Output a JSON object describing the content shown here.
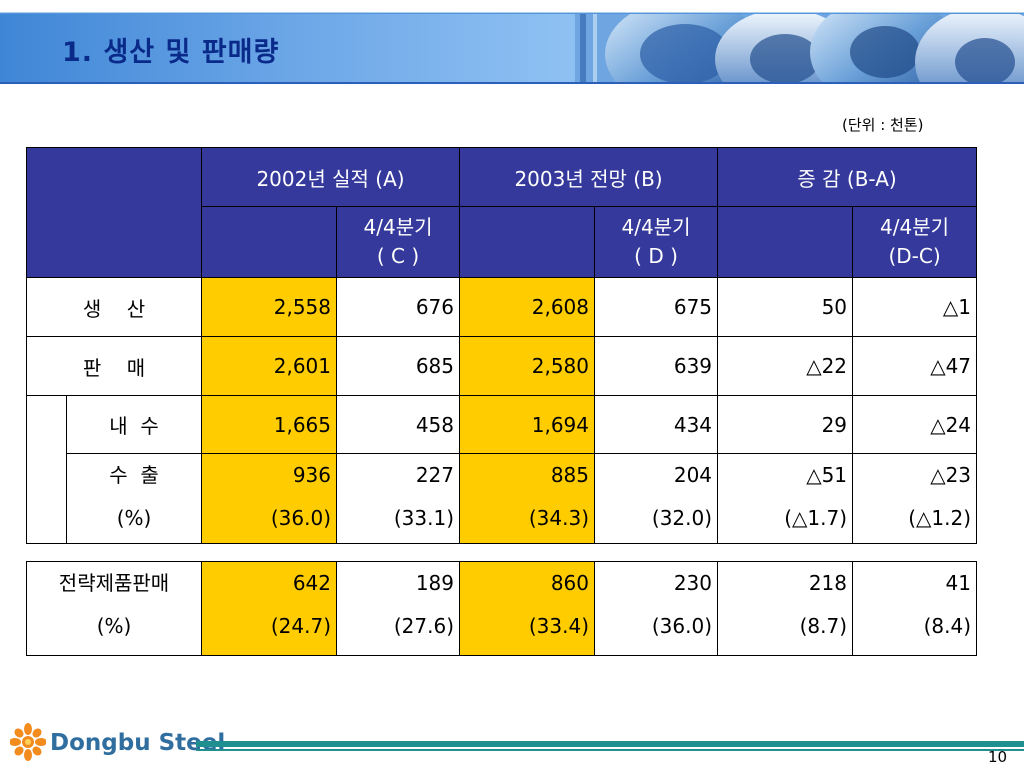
{
  "header": {
    "title": "1. 생산 및 판매량"
  },
  "unit_note": "(단위 : 천톤)",
  "columns": {
    "group_2002": "2002년 실적 (A)",
    "group_2003": "2003년 전망 (B)",
    "group_diff": "증 감 (B-A)",
    "q4_c_line1": "4/4분기",
    "q4_c_line2": "( C )",
    "q4_d_line1": "4/4분기",
    "q4_d_line2": "( D )",
    "q4_diff_line1": "4/4분기",
    "q4_diff_line2": "(D-C)"
  },
  "rows": {
    "production": {
      "label": "생    산",
      "a": "2,558",
      "c": "676",
      "b": "2,608",
      "d": "675",
      "diff": "50",
      "q4diff": "△1"
    },
    "sales": {
      "label": "판    매",
      "a": "2,601",
      "c": "685",
      "b": "2,580",
      "d": "639",
      "diff": "△22",
      "q4diff": "△47"
    },
    "domestic": {
      "label": "내  수",
      "a": "1,665",
      "c": "458",
      "b": "1,694",
      "d": "434",
      "diff": "29",
      "q4diff": "△24"
    },
    "export": {
      "label": "수  출",
      "a": "936",
      "c": "227",
      "b": "885",
      "d": "204",
      "diff": "△51",
      "q4diff": "△23"
    },
    "export_pct": {
      "label": "(%)",
      "a": "(36.0)",
      "c": "(33.1)",
      "b": "(34.3)",
      "d": "(32.0)",
      "diff": "(△1.7)",
      "q4diff": "(△1.2)"
    }
  },
  "strategic": {
    "label": "전략제품판매",
    "a": "642",
    "c": "189",
    "b": "860",
    "d": "230",
    "diff": "218",
    "q4diff": "41",
    "pct_label": "(%)",
    "pct_a": "(24.7)",
    "pct_c": "(27.6)",
    "pct_b": "(33.4)",
    "pct_d": "(36.0)",
    "pct_diff": "(8.7)",
    "pct_q4diff": "(8.4)"
  },
  "footer": {
    "logo_text": "Dongbu Steel",
    "page_number": "10"
  },
  "colors": {
    "header_fill": "#34399b",
    "highlight": "#ffcc00",
    "title": "#0a2a8a",
    "footer_line": "#1f8f8f"
  }
}
